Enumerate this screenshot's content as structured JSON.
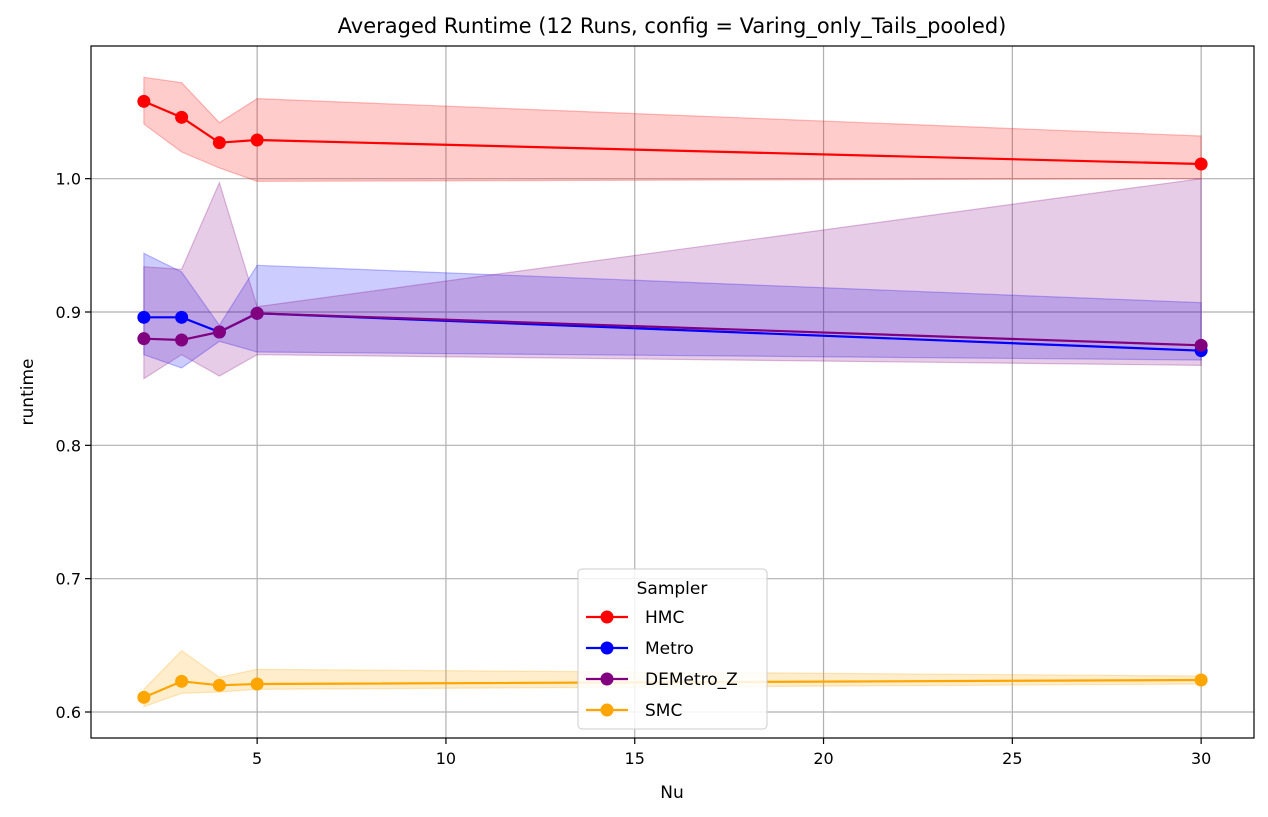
{
  "chart_data": {
    "type": "line",
    "title": "Averaged Runtime (12 Runs, config = Varing_only_Tails_pooled)",
    "xlabel": "Nu",
    "ylabel": "runtime",
    "xlim": [
      0.6,
      31.4
    ],
    "ylim": [
      0.5805,
      1.0995
    ],
    "xticks": [
      5,
      10,
      15,
      20,
      25,
      30
    ],
    "yticks": [
      0.6,
      0.7,
      0.8,
      0.9,
      1.0
    ],
    "xtick_labels": [
      "5",
      "10",
      "15",
      "20",
      "25",
      "30"
    ],
    "ytick_labels": [
      "0.6",
      "0.7",
      "0.8",
      "0.9",
      "1.0"
    ],
    "grid": true,
    "legend": {
      "title": "Sampler",
      "placement": "lower center"
    },
    "x": [
      2,
      3,
      4,
      5,
      30
    ],
    "series": [
      {
        "name": "HMC",
        "color": "#ff0000",
        "band_color": "#ff0000",
        "values": [
          1.058,
          1.046,
          1.027,
          1.029,
          1.011
        ],
        "lower": [
          1.041,
          1.02,
          1.008,
          0.998,
          1.0
        ],
        "upper": [
          1.076,
          1.072,
          1.042,
          1.06,
          1.032
        ]
      },
      {
        "name": "Metro",
        "color": "#0000ff",
        "band_color": "#0000ff",
        "values": [
          0.896,
          0.896,
          0.885,
          0.899,
          0.871
        ],
        "lower": [
          0.868,
          0.858,
          0.878,
          0.87,
          0.864
        ],
        "upper": [
          0.944,
          0.93,
          0.89,
          0.935,
          0.907
        ]
      },
      {
        "name": "DEMetro_Z",
        "color": "#800080",
        "band_color": "#800080",
        "values": [
          0.88,
          0.879,
          0.885,
          0.899,
          0.875
        ],
        "lower": [
          0.85,
          0.868,
          0.852,
          0.868,
          0.86
        ],
        "upper": [
          0.934,
          0.932,
          0.997,
          0.904,
          1.0
        ]
      },
      {
        "name": "SMC",
        "color": "#ffa500",
        "band_color": "#ffa500",
        "values": [
          0.611,
          0.623,
          0.62,
          0.621,
          0.624
        ],
        "lower": [
          0.604,
          0.614,
          0.615,
          0.617,
          0.621
        ],
        "upper": [
          0.617,
          0.646,
          0.626,
          0.632,
          0.627
        ]
      }
    ]
  }
}
